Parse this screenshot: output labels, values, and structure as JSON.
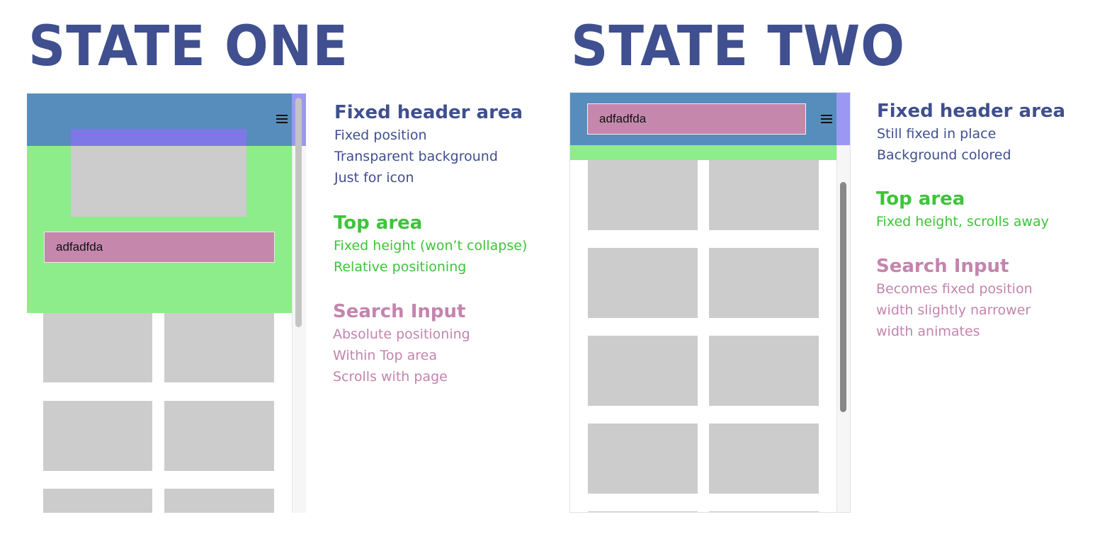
{
  "colors": {
    "title": "#3f4f8f",
    "header": "#568dbd",
    "top_area": "#8ded8a",
    "search": "#c687ad",
    "icon_overlay": "#7d78e6",
    "scroll_overlay": "#9b98f3",
    "placeholder": "#cccccc",
    "header_text": "#3f4f8f",
    "top_text": "#3dc43a",
    "search_text": "#c484ae"
  },
  "states": [
    {
      "title": "STATE ONE",
      "search_value": "adfadfda",
      "icon": "hamburger-menu-icon",
      "labels": {
        "header": {
          "heading": "Fixed header area",
          "lines": [
            "Fixed position",
            "Transparent background",
            "Just for icon"
          ]
        },
        "top": {
          "heading": "Top area",
          "lines": [
            "Fixed height (won’t collapse)",
            "Relative positioning"
          ]
        },
        "search": {
          "heading": "Search Input",
          "lines": [
            "Absolute positioning",
            "Within Top area",
            "Scrolls with page"
          ]
        }
      }
    },
    {
      "title": "STATE TWO",
      "search_value": "adfadfda",
      "icon": "hamburger-menu-icon",
      "labels": {
        "header": {
          "heading": "Fixed header area",
          "lines": [
            "Still fixed in place",
            "Background colored"
          ]
        },
        "top": {
          "heading": "Top area",
          "lines": [
            "Fixed height, scrolls away"
          ]
        },
        "search": {
          "heading": "Search Input",
          "lines": [
            "Becomes fixed position",
            "width slightly narrower",
            "width animates"
          ]
        }
      }
    }
  ]
}
